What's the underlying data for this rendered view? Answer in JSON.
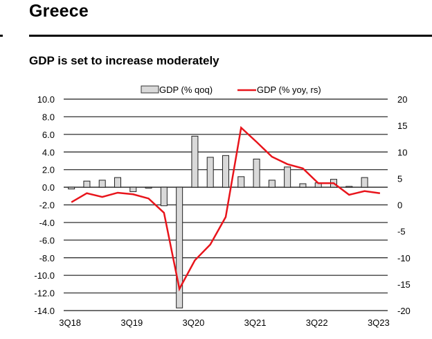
{
  "page": {
    "title": "Greece"
  },
  "chart_data": {
    "type": "bar",
    "title": "GDP is set to increase moderately",
    "xlabel": "",
    "ylabel": "",
    "categories": [
      "3Q18",
      "4Q18",
      "1Q19",
      "2Q19",
      "3Q19",
      "4Q19",
      "1Q20",
      "2Q20",
      "3Q20",
      "4Q20",
      "1Q21",
      "2Q21",
      "3Q21",
      "4Q21",
      "1Q22",
      "2Q22",
      "3Q22",
      "4Q22",
      "1Q23",
      "2Q23",
      "3Q23"
    ],
    "x_tick_labels": [
      "3Q18",
      "3Q19",
      "3Q20",
      "3Q21",
      "3Q22",
      "3Q23"
    ],
    "series": [
      {
        "name": "GDP (% qoq)",
        "type": "bar",
        "axis": "left",
        "color": "#d9d9d9",
        "values": [
          -0.2,
          0.7,
          0.8,
          1.1,
          -0.5,
          -0.1,
          -2.1,
          -13.7,
          5.8,
          3.4,
          3.6,
          1.2,
          3.2,
          0.8,
          2.3,
          0.4,
          0.5,
          0.9,
          0.1,
          1.1,
          null
        ]
      },
      {
        "name": "GDP (% yoy, rs)",
        "type": "line",
        "axis": "right",
        "color": "#e8141b",
        "values": [
          0.5,
          2.2,
          1.5,
          2.3,
          2.0,
          1.2,
          -1.5,
          -15.9,
          -10.5,
          -7.5,
          -2.3,
          14.6,
          11.9,
          9.1,
          7.7,
          6.9,
          4.1,
          4.1,
          1.9,
          2.6,
          2.2
        ]
      }
    ],
    "y_left": {
      "ylim": [
        -14.0,
        10.0
      ],
      "ticks": [
        "10.0",
        "8.0",
        "6.0",
        "4.0",
        "2.0",
        "0.0",
        "-2.0",
        "-4.0",
        "-6.0",
        "-8.0",
        "-10.0",
        "-12.0",
        "-14.0"
      ],
      "tick_values": [
        10,
        8,
        6,
        4,
        2,
        0,
        -2,
        -4,
        -6,
        -8,
        -10,
        -12,
        -14
      ]
    },
    "y_right": {
      "ylim": [
        -20,
        20
      ],
      "ticks": [
        "20",
        "15",
        "10",
        "5",
        "0",
        "-5",
        "-10",
        "-15",
        "-20"
      ],
      "tick_values": [
        20,
        15,
        10,
        5,
        0,
        -5,
        -10,
        -15,
        -20
      ]
    },
    "grid": true,
    "legend": {
      "placement": "top-center",
      "entries": [
        "GDP (% qoq)",
        "GDP (% yoy, rs)"
      ]
    }
  }
}
